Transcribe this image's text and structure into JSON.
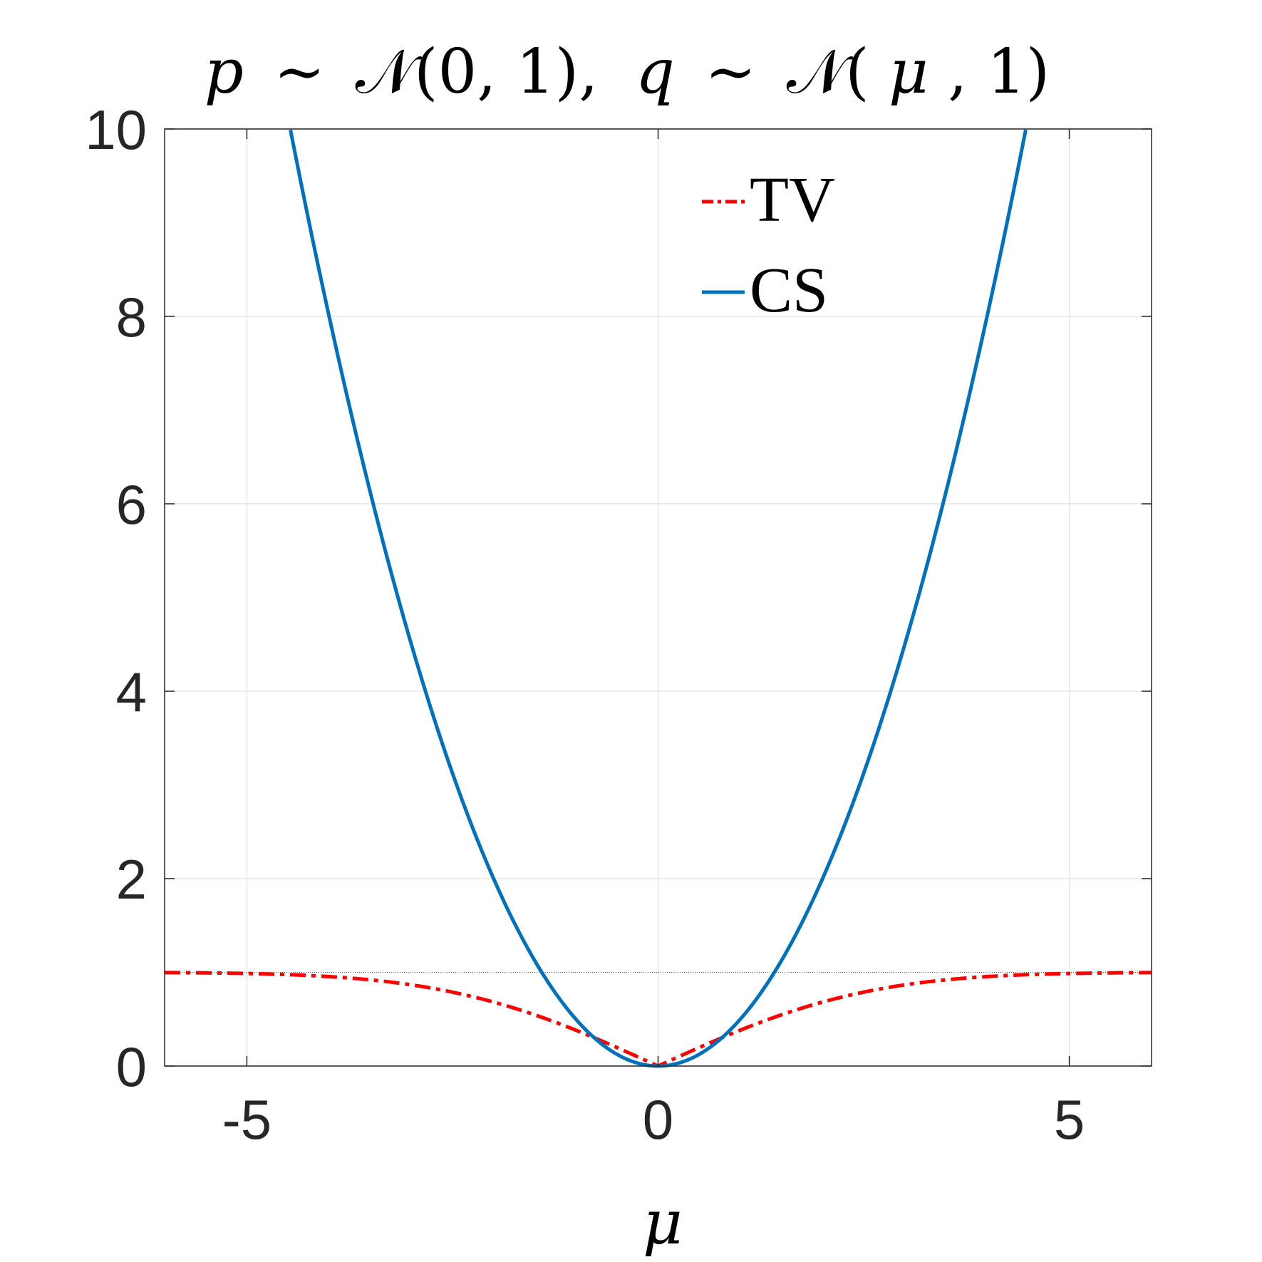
{
  "chart_data": {
    "type": "line",
    "title": "p ∼ 𝒩(0, 1), q ∼ 𝒩(μ, 1)",
    "title_parts": {
      "p": "p",
      "dist1": "𝒩(0, 1),",
      "q": "q",
      "dist2_open": "𝒩(",
      "mu": "μ",
      "dist2_close": ", 1)",
      "sim": "∼"
    },
    "xlabel": "μ",
    "ylabel": "",
    "xlim": [
      -6,
      6
    ],
    "ylim": [
      0,
      10
    ],
    "xticks": [
      -5,
      0,
      5
    ],
    "xtick_labels": [
      "-5",
      "0",
      "5"
    ],
    "yticks": [
      0,
      2,
      4,
      6,
      8,
      10
    ],
    "ytick_labels": [
      "0",
      "2",
      "4",
      "6",
      "8",
      "10"
    ],
    "grid": true,
    "legend_position": "top-center",
    "series": [
      {
        "name": "TV",
        "color": "#ff0000",
        "style": "dash-dot",
        "x": [
          -6,
          -5.5,
          -5,
          -4.5,
          -4,
          -3.5,
          -3,
          -2.5,
          -2,
          -1.5,
          -1,
          -0.75,
          -0.5,
          -0.25,
          0,
          0.25,
          0.5,
          0.75,
          1,
          1.5,
          2,
          2.5,
          3,
          3.5,
          4,
          4.5,
          5,
          5.5,
          6
        ],
        "y": [
          1.0,
          0.99,
          0.98,
          0.96,
          0.92,
          0.86,
          0.78,
          0.68,
          0.56,
          0.44,
          0.29,
          0.22,
          0.15,
          0.08,
          0.0,
          0.08,
          0.15,
          0.22,
          0.29,
          0.44,
          0.56,
          0.68,
          0.78,
          0.86,
          0.92,
          0.96,
          0.98,
          0.99,
          1.0
        ]
      },
      {
        "name": "CS",
        "color": "#0072bd",
        "style": "solid",
        "x": [
          -4.47,
          -4,
          -3.5,
          -3,
          -2.5,
          -2,
          -1.5,
          -1,
          -0.5,
          0,
          0.5,
          1,
          1.5,
          2,
          2.5,
          3,
          3.5,
          4,
          4.47
        ],
        "y": [
          10.0,
          8.0,
          6.13,
          4.5,
          3.13,
          2.0,
          1.13,
          0.5,
          0.13,
          0.0,
          0.13,
          0.5,
          1.13,
          2.0,
          3.13,
          4.5,
          6.13,
          8.0,
          10.0
        ]
      }
    ]
  },
  "colors": {
    "tv": "#ff0000",
    "cs": "#0072bd",
    "axis": "#262626",
    "grid": "#e6e6e6"
  }
}
